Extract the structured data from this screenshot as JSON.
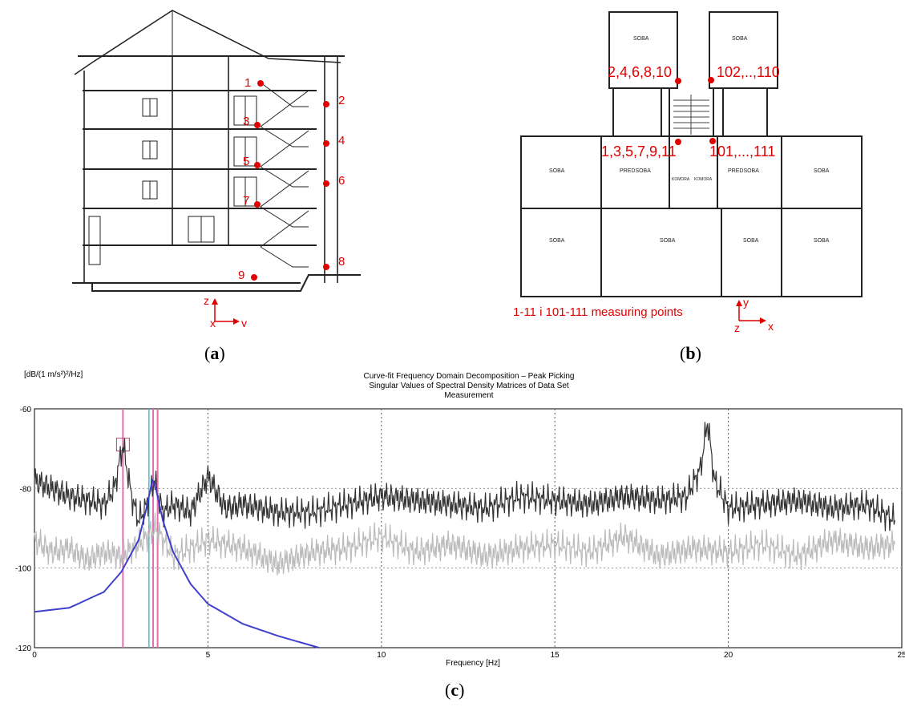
{
  "panel_a": {
    "points": [
      "1",
      "2",
      "3",
      "4",
      "5",
      "6",
      "7",
      "8",
      "9"
    ],
    "axes": {
      "z": "z",
      "x": "x",
      "y": "y"
    },
    "caption_open": "(",
    "caption_letter": "a",
    "caption_close": ")"
  },
  "panel_b": {
    "room_labels": [
      "SOBA",
      "SOBA",
      "SOBA",
      "PREDSOBA",
      "KOMORA",
      "KOMORA",
      "PREDSOBA",
      "SOBA",
      "SOBA",
      "SOBA",
      "SOBA",
      "SOBA"
    ],
    "point_groups": [
      "2,4,6,8,10",
      "102,..,110",
      "1,3,5,7,9,11",
      "101,...,111"
    ],
    "legend": "1-11 i 101-111  measuring points",
    "axes": {
      "y": "y",
      "z": "z",
      "x": "x"
    },
    "caption_open": "(",
    "caption_letter": "b",
    "caption_close": ")"
  },
  "panel_c": {
    "caption_open": "(",
    "caption_letter": "c",
    "caption_close": ")"
  },
  "chart_data": {
    "type": "line",
    "title": "Curve-fit Frequency Domain Decomposition – Peak Picking",
    "subtitle_1": "Singular Values of Spectral Density Matrices of Data Set",
    "subtitle_2": "Measurement",
    "ylabel": "[dB/(1 m/s²)²/Hz]",
    "xlabel": "Frequency [Hz]",
    "xlim": [
      0,
      25
    ],
    "ylim": [
      -120,
      -60
    ],
    "x_ticks": [
      "0",
      "5",
      "10",
      "15",
      "20",
      "25"
    ],
    "y_ticks": [
      "-60",
      "-80",
      "-100",
      "-120"
    ],
    "grid": true,
    "markers": {
      "pink_lines_hz": [
        2.55,
        3.42,
        3.55
      ],
      "cyan_line_hz": 3.3,
      "peak_box_hz": 2.55,
      "peak_box_db": -69
    },
    "series": [
      {
        "color": "#333333",
        "x": [
          0,
          0.5,
          1,
          1.5,
          2,
          2.3,
          2.55,
          2.8,
          3,
          3.2,
          3.45,
          3.7,
          4,
          4.5,
          5,
          5.5,
          6,
          7,
          8,
          9,
          10,
          11,
          12,
          13,
          14,
          15,
          16,
          17,
          18,
          18.8,
          19.2,
          19.4,
          19.6,
          20,
          21,
          22,
          23,
          24,
          24.8
        ],
        "values": [
          -78,
          -80,
          -82,
          -83,
          -84,
          -80,
          -69,
          -82,
          -88,
          -85,
          -78,
          -86,
          -84,
          -86,
          -77,
          -85,
          -84,
          -86,
          -86,
          -84,
          -82,
          -83,
          -84,
          -85,
          -82,
          -83,
          -84,
          -82,
          -83,
          -82,
          -75,
          -63,
          -78,
          -85,
          -84,
          -83,
          -85,
          -84,
          -88
        ]
      },
      {
        "color": "#bbbbbb",
        "x": [
          0,
          0.5,
          1,
          1.5,
          2,
          2.5,
          3,
          3.5,
          4,
          5,
          6,
          7,
          8,
          9,
          10,
          11,
          12,
          13,
          14,
          15,
          16,
          17,
          18,
          19,
          20,
          21,
          22,
          23,
          24,
          24.8
        ],
        "values": [
          -93,
          -96,
          -95,
          -98,
          -96,
          -97,
          -94,
          -90,
          -97,
          -93,
          -95,
          -99,
          -96,
          -95,
          -92,
          -96,
          -94,
          -97,
          -95,
          -94,
          -96,
          -92,
          -97,
          -95,
          -96,
          -94,
          -97,
          -93,
          -95,
          -94
        ]
      },
      {
        "color": "#4040cc",
        "x": [
          0,
          1,
          2,
          2.5,
          3,
          3.2,
          3.4,
          3.5,
          3.7,
          4,
          4.5,
          5,
          6,
          7,
          8.2
        ],
        "values": [
          -111,
          -110,
          -106,
          -101,
          -93,
          -86,
          -78,
          -80,
          -88,
          -96,
          -104,
          -109,
          -114,
          -117,
          -120
        ]
      }
    ]
  }
}
